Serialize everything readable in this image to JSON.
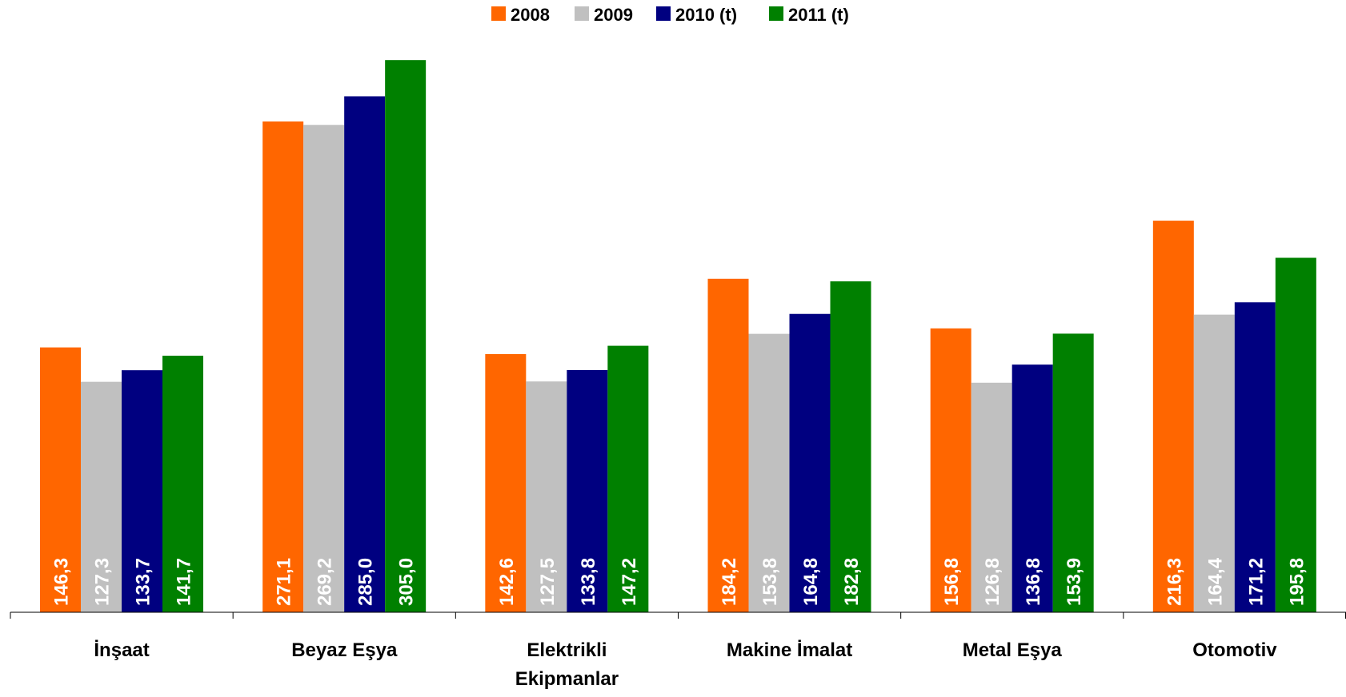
{
  "chart_data": {
    "type": "bar",
    "categories": [
      [
        "İnşaat"
      ],
      [
        "Beyaz Eşya"
      ],
      [
        "Elektrikli",
        "Ekipmanlar"
      ],
      [
        "Makine İmalat"
      ],
      [
        "Metal Eşya"
      ],
      [
        "Otomotiv"
      ]
    ],
    "series": [
      {
        "name": "2008",
        "color": "#ff6600",
        "values": [
          146.3,
          271.1,
          142.6,
          184.2,
          156.8,
          216.3
        ],
        "labels": [
          "146,3",
          "271,1",
          "142,6",
          "184,2",
          "156,8",
          "216,3"
        ]
      },
      {
        "name": "2009",
        "color": "#c0c0c0",
        "values": [
          127.3,
          269.2,
          127.5,
          153.8,
          126.8,
          164.4
        ],
        "labels": [
          "127,3",
          "269,2",
          "127,5",
          "153,8",
          "126,8",
          "164,4"
        ]
      },
      {
        "name": "2010 (t)",
        "color": "#000080",
        "values": [
          133.7,
          285.0,
          133.8,
          164.8,
          136.8,
          171.2
        ],
        "labels": [
          "133,7",
          "285,0",
          "133,8",
          "164,8",
          "136,8",
          "171,2"
        ]
      },
      {
        "name": "2011 (t)",
        "color": "#008000",
        "values": [
          141.7,
          305.0,
          147.2,
          182.8,
          153.9,
          195.8
        ],
        "labels": [
          "141,7",
          "305,0",
          "147,2",
          "182,8",
          "153,9",
          "195,8"
        ]
      }
    ],
    "legend_position": "top-center",
    "grid": false
  }
}
